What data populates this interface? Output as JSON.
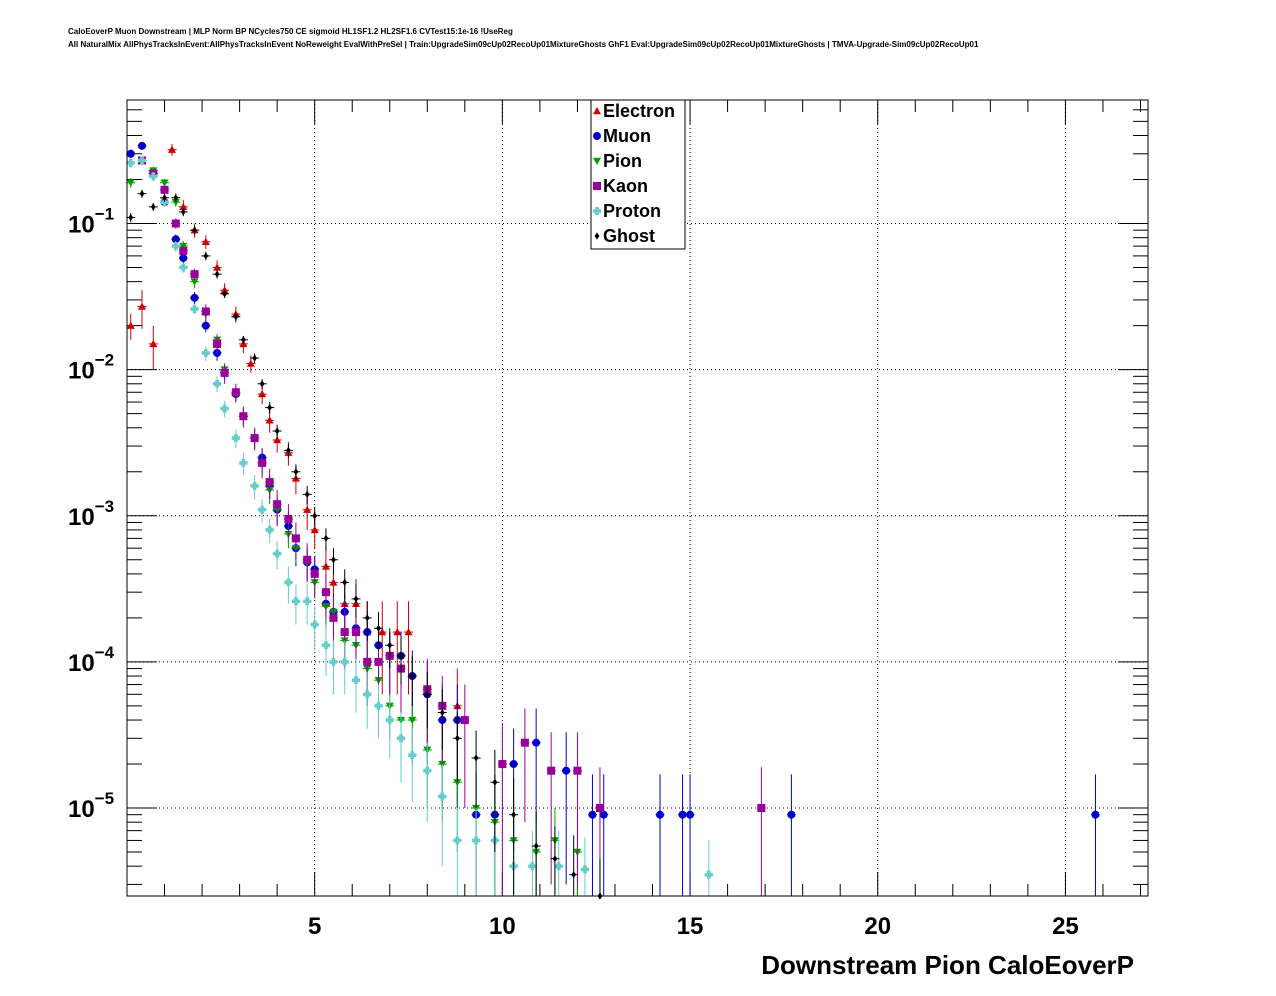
{
  "header": {
    "line1": "CaloEoverP Muon Downstream | MLP Norm BP NCycles750 CE sigmoid HL1SF1.2 HL2SF1.6 CVTest15:1e-16 !UseReg",
    "line2": "All NaturalMix AllPhysTracksInEvent:AllPhysTracksInEvent NoReweight EvalWithPreSel | Train:UpgradeSim09cUp02RecoUp01MixtureGhosts GhF1 Eval:UpgradeSim09cUp02RecoUp01MixtureGhosts | TMVA-Upgrade-Sim09cUp02RecoUp01"
  },
  "chart_data": {
    "type": "scatter",
    "xlabel": "Downstream Pion CaloEoverP",
    "ylabel": "",
    "xlim": [
      0,
      27.2
    ],
    "ylim": [
      2.5e-06,
      0.7
    ],
    "yscale": "log",
    "grid": true,
    "legend_position": "top-center",
    "x_ticks": [
      {
        "value": 5,
        "label": "5"
      },
      {
        "value": 10,
        "label": "10"
      },
      {
        "value": 15,
        "label": "15"
      },
      {
        "value": 20,
        "label": "20"
      },
      {
        "value": 25,
        "label": "25"
      }
    ],
    "y_ticks": [
      {
        "value": 0.1,
        "base": "10",
        "exp": "−1"
      },
      {
        "value": 0.01,
        "base": "10",
        "exp": "−2"
      },
      {
        "value": 0.001,
        "base": "10",
        "exp": "−3"
      },
      {
        "value": 0.0001,
        "base": "10",
        "exp": "−4"
      },
      {
        "value": 1e-05,
        "base": "10",
        "exp": "−5"
      }
    ],
    "series": [
      {
        "name": "Electron",
        "color": "#cc0000",
        "marker": "triangle-up",
        "points": [
          [
            0.1,
            0.02
          ],
          [
            0.4,
            0.027
          ],
          [
            0.7,
            0.015
          ],
          [
            1.2,
            0.32
          ],
          [
            1.5,
            0.13
          ],
          [
            1.8,
            0.09
          ],
          [
            2.1,
            0.075
          ],
          [
            2.4,
            0.05
          ],
          [
            2.6,
            0.035
          ],
          [
            2.9,
            0.024
          ],
          [
            3.1,
            0.015
          ],
          [
            3.3,
            0.011
          ],
          [
            3.6,
            0.0068
          ],
          [
            3.8,
            0.0045
          ],
          [
            4.0,
            0.0033
          ],
          [
            4.3,
            0.0027
          ],
          [
            4.5,
            0.0018
          ],
          [
            4.8,
            0.0011
          ],
          [
            5.0,
            0.0008
          ],
          [
            5.3,
            0.00045
          ],
          [
            5.5,
            0.00035
          ],
          [
            5.8,
            0.00025
          ],
          [
            6.1,
            0.00025
          ],
          [
            6.4,
            0.00016
          ],
          [
            6.8,
            0.00016
          ],
          [
            7.2,
            0.00016
          ],
          [
            7.5,
            0.00016
          ],
          [
            8.8,
            5e-05
          ]
        ],
        "errors": [
          0.004,
          0.008,
          0.005,
          0.03,
          0.015,
          0.01,
          0.008,
          0.006,
          0.004,
          0.003,
          0.002,
          0.0015,
          0.001,
          0.0008,
          0.0006,
          0.0005,
          0.0004,
          0.0003,
          0.0002,
          0.00015,
          0.00015,
          0.00012,
          0.00012,
          0.0001,
          0.0001,
          0.0001,
          0.0001,
          4e-05
        ]
      },
      {
        "name": "Muon",
        "color": "#0000cc",
        "marker": "circle",
        "points": [
          [
            0.1,
            0.3
          ],
          [
            0.4,
            0.34
          ],
          [
            0.7,
            0.22
          ],
          [
            1.0,
            0.14
          ],
          [
            1.3,
            0.078
          ],
          [
            1.5,
            0.058
          ],
          [
            1.8,
            0.031
          ],
          [
            2.1,
            0.02
          ],
          [
            2.4,
            0.013
          ],
          [
            2.6,
            0.0095
          ],
          [
            2.9,
            0.0068
          ],
          [
            3.1,
            0.0048
          ],
          [
            3.4,
            0.0034
          ],
          [
            3.6,
            0.0025
          ],
          [
            3.8,
            0.0016
          ],
          [
            4.0,
            0.0011
          ],
          [
            4.3,
            0.00085
          ],
          [
            4.5,
            0.0006
          ],
          [
            4.8,
            0.00048
          ],
          [
            5.0,
            0.00043
          ],
          [
            5.3,
            0.00025
          ],
          [
            5.5,
            0.00022
          ],
          [
            5.8,
            0.00022
          ],
          [
            6.1,
            0.00017
          ],
          [
            6.4,
            0.00016
          ],
          [
            6.7,
            0.00013
          ],
          [
            7.0,
            0.00011
          ],
          [
            7.3,
            0.00011
          ],
          [
            7.6,
            8e-05
          ],
          [
            8.0,
            6e-05
          ],
          [
            8.4,
            4e-05
          ],
          [
            8.8,
            4e-05
          ],
          [
            9.3,
            9e-06
          ],
          [
            9.8,
            9e-06
          ],
          [
            10.3,
            2e-05
          ],
          [
            10.9,
            2.8e-05
          ],
          [
            11.7,
            1.8e-05
          ],
          [
            12.4,
            9e-06
          ],
          [
            12.7,
            9e-06
          ],
          [
            14.2,
            9e-06
          ],
          [
            14.8,
            9e-06
          ],
          [
            15.0,
            9e-06
          ],
          [
            17.7,
            9e-06
          ],
          [
            25.8,
            9e-06
          ]
        ],
        "errors": [
          0.02,
          0.02,
          0.015,
          0.01,
          0.006,
          0.005,
          0.003,
          0.002,
          0.0015,
          0.001,
          0.0008,
          0.0006,
          0.0005,
          0.0004,
          0.0003,
          0.00025,
          0.0002,
          0.00015,
          0.00012,
          0.0001,
          8e-05,
          7e-05,
          7e-05,
          6e-05,
          6e-05,
          5e-05,
          5e-05,
          5e-05,
          4e-05,
          4e-05,
          3e-05,
          3e-05,
          8e-06,
          8e-06,
          1.5e-05,
          2e-05,
          1.5e-05,
          8e-06,
          8e-06,
          8e-06,
          8e-06,
          8e-06,
          8e-06,
          8e-06
        ]
      },
      {
        "name": "Pion",
        "color": "#00a000",
        "marker": "triangle-down",
        "points": [
          [
            0.1,
            0.19
          ],
          [
            0.4,
            0.27
          ],
          [
            0.7,
            0.23
          ],
          [
            1.0,
            0.19
          ],
          [
            1.3,
            0.14
          ],
          [
            1.5,
            0.07
          ],
          [
            1.8,
            0.04
          ],
          [
            2.1,
            0.024
          ],
          [
            2.4,
            0.016
          ],
          [
            2.6,
            0.01
          ],
          [
            2.9,
            0.0068
          ],
          [
            3.1,
            0.0048
          ],
          [
            3.4,
            0.0034
          ],
          [
            3.6,
            0.0023
          ],
          [
            3.8,
            0.0015
          ],
          [
            4.0,
            0.0011
          ],
          [
            4.3,
            0.00075
          ],
          [
            4.5,
            0.0006
          ],
          [
            4.8,
            0.00048
          ],
          [
            5.0,
            0.00035
          ],
          [
            5.3,
            0.00024
          ],
          [
            5.5,
            0.00022
          ],
          [
            5.8,
            0.00014
          ],
          [
            6.1,
            0.00013
          ],
          [
            6.4,
            9e-05
          ],
          [
            6.7,
            7.5e-05
          ],
          [
            7.0,
            5e-05
          ],
          [
            7.3,
            4e-05
          ],
          [
            7.6,
            4e-05
          ],
          [
            8.0,
            2.5e-05
          ],
          [
            8.4,
            2e-05
          ],
          [
            8.8,
            1.5e-05
          ],
          [
            9.3,
            1e-05
          ],
          [
            9.8,
            8e-06
          ],
          [
            10.3,
            6e-06
          ],
          [
            10.9,
            5e-06
          ],
          [
            11.4,
            6e-06
          ],
          [
            12.0,
            5e-06
          ]
        ],
        "errors": [
          0.015,
          0.02,
          0.015,
          0.012,
          0.01,
          0.006,
          0.004,
          0.002,
          0.0015,
          0.001,
          0.0008,
          0.0006,
          0.0005,
          0.0004,
          0.0003,
          0.0002,
          0.00015,
          0.00012,
          0.0001,
          8e-05,
          7e-05,
          6e-05,
          5e-05,
          5e-05,
          4e-05,
          3e-05,
          2e-05,
          2e-05,
          2e-05,
          1.5e-05,
          1.2e-05,
          1e-05,
          8e-06,
          6e-06,
          4e-06,
          4e-06,
          4e-06,
          4e-06
        ]
      },
      {
        "name": "Kaon",
        "color": "#990099",
        "marker": "square",
        "points": [
          [
            0.4,
            0.27
          ],
          [
            0.7,
            0.22
          ],
          [
            1.0,
            0.17
          ],
          [
            1.3,
            0.1
          ],
          [
            1.5,
            0.065
          ],
          [
            1.8,
            0.045
          ],
          [
            2.1,
            0.025
          ],
          [
            2.4,
            0.015
          ],
          [
            2.6,
            0.0095
          ],
          [
            2.9,
            0.007
          ],
          [
            3.1,
            0.0048
          ],
          [
            3.4,
            0.0034
          ],
          [
            3.6,
            0.0023
          ],
          [
            3.8,
            0.0017
          ],
          [
            4.0,
            0.0012
          ],
          [
            4.3,
            0.00095
          ],
          [
            4.5,
            0.0007
          ],
          [
            4.8,
            0.0005
          ],
          [
            5.0,
            0.0004
          ],
          [
            5.3,
            0.0003
          ],
          [
            5.5,
            0.0002
          ],
          [
            5.8,
            0.00016
          ],
          [
            6.1,
            0.00016
          ],
          [
            6.4,
            0.0001
          ],
          [
            6.7,
            0.0001
          ],
          [
            7.0,
            0.00011
          ],
          [
            7.3,
            9e-05
          ],
          [
            8.0,
            6.5e-05
          ],
          [
            8.4,
            5e-05
          ],
          [
            9.0,
            4e-05
          ],
          [
            10.0,
            2e-05
          ],
          [
            10.6,
            2.8e-05
          ],
          [
            11.3,
            1.8e-05
          ],
          [
            12.0,
            1.8e-05
          ],
          [
            12.6,
            1e-05
          ],
          [
            16.9,
            1e-05
          ]
        ],
        "errors": [
          0.02,
          0.015,
          0.012,
          0.008,
          0.006,
          0.004,
          0.003,
          0.002,
          0.0015,
          0.001,
          0.0008,
          0.0006,
          0.0005,
          0.0004,
          0.0003,
          0.00025,
          0.0002,
          0.00015,
          0.00012,
          0.0001,
          8e-05,
          7e-05,
          7e-05,
          5e-05,
          5e-05,
          5e-05,
          5e-05,
          4e-05,
          3e-05,
          3e-05,
          1.8e-05,
          2e-05,
          1.5e-05,
          1.5e-05,
          9e-06,
          9e-06
        ]
      },
      {
        "name": "Proton",
        "color": "#66cccc",
        "marker": "cross",
        "points": [
          [
            0.1,
            0.26
          ],
          [
            0.4,
            0.27
          ],
          [
            0.7,
            0.21
          ],
          [
            1.0,
            0.14
          ],
          [
            1.3,
            0.07
          ],
          [
            1.5,
            0.05
          ],
          [
            1.8,
            0.026
          ],
          [
            2.1,
            0.013
          ],
          [
            2.4,
            0.008
          ],
          [
            2.6,
            0.0054
          ],
          [
            2.9,
            0.0034
          ],
          [
            3.1,
            0.0023
          ],
          [
            3.4,
            0.0016
          ],
          [
            3.6,
            0.0011
          ],
          [
            3.8,
            0.0008
          ],
          [
            4.0,
            0.00055
          ],
          [
            4.3,
            0.00035
          ],
          [
            4.5,
            0.00026
          ],
          [
            4.8,
            0.00026
          ],
          [
            5.0,
            0.00018
          ],
          [
            5.3,
            0.00013
          ],
          [
            5.5,
            0.0001
          ],
          [
            5.8,
            0.0001
          ],
          [
            6.1,
            7.5e-05
          ],
          [
            6.4,
            6e-05
          ],
          [
            6.7,
            5e-05
          ],
          [
            7.0,
            4e-05
          ],
          [
            7.3,
            3e-05
          ],
          [
            7.6,
            2.3e-05
          ],
          [
            8.0,
            1.8e-05
          ],
          [
            8.4,
            1.2e-05
          ],
          [
            8.8,
            6e-06
          ],
          [
            9.3,
            6e-06
          ],
          [
            9.8,
            6e-06
          ],
          [
            10.3,
            4e-06
          ],
          [
            10.8,
            4e-06
          ],
          [
            11.5,
            4e-06
          ],
          [
            12.2,
            3.8e-06
          ],
          [
            15.5,
            3.5e-06
          ]
        ],
        "errors": [
          0.02,
          0.02,
          0.015,
          0.01,
          0.006,
          0.004,
          0.002,
          0.0015,
          0.001,
          0.0007,
          0.0005,
          0.0004,
          0.0003,
          0.0002,
          0.00015,
          0.00012,
          0.0001,
          8e-05,
          8e-05,
          6e-05,
          5e-05,
          4e-05,
          4e-05,
          3e-05,
          2.5e-05,
          2e-05,
          1.8e-05,
          1.5e-05,
          1.2e-05,
          1e-05,
          8e-06,
          4e-06,
          4e-06,
          4e-06,
          3e-06,
          3e-06,
          3e-06,
          2.5e-06,
          2.5e-06
        ]
      },
      {
        "name": "Ghost",
        "color": "#000000",
        "marker": "diamond",
        "points": [
          [
            0.1,
            0.11
          ],
          [
            0.4,
            0.16
          ],
          [
            0.7,
            0.13
          ],
          [
            1.0,
            0.15
          ],
          [
            1.3,
            0.15
          ],
          [
            1.5,
            0.12
          ],
          [
            1.8,
            0.09
          ],
          [
            2.1,
            0.06
          ],
          [
            2.4,
            0.045
          ],
          [
            2.6,
            0.033
          ],
          [
            2.9,
            0.023
          ],
          [
            3.1,
            0.016
          ],
          [
            3.4,
            0.012
          ],
          [
            3.6,
            0.008
          ],
          [
            3.8,
            0.0055
          ],
          [
            4.0,
            0.0038
          ],
          [
            4.3,
            0.0028
          ],
          [
            4.5,
            0.002
          ],
          [
            4.8,
            0.0014
          ],
          [
            5.0,
            0.001
          ],
          [
            5.3,
            0.0007
          ],
          [
            5.5,
            0.0005
          ],
          [
            5.8,
            0.00035
          ],
          [
            6.1,
            0.00027
          ],
          [
            6.4,
            0.0002
          ],
          [
            6.7,
            0.00017
          ],
          [
            7.0,
            0.00013
          ],
          [
            7.3,
            0.00011
          ],
          [
            7.6,
            8e-05
          ],
          [
            8.0,
            6e-05
          ],
          [
            8.4,
            4.5e-05
          ],
          [
            8.8,
            3e-05
          ],
          [
            9.3,
            2.2e-05
          ],
          [
            9.8,
            1.5e-05
          ],
          [
            10.3,
            9e-06
          ],
          [
            10.9,
            5.5e-06
          ],
          [
            11.4,
            4.5e-06
          ],
          [
            11.9,
            3.5e-06
          ],
          [
            12.6,
            2.5e-06
          ]
        ],
        "errors": [
          0.008,
          0.01,
          0.008,
          0.01,
          0.01,
          0.008,
          0.006,
          0.004,
          0.003,
          0.002,
          0.0015,
          0.001,
          0.0009,
          0.0006,
          0.0005,
          0.0004,
          0.0003,
          0.00025,
          0.0002,
          0.00015,
          0.00012,
          0.0001,
          8e-05,
          7e-05,
          6e-05,
          5e-05,
          4e-05,
          4e-05,
          3e-05,
          2.5e-05,
          2e-05,
          1.5e-05,
          1.2e-05,
          1e-05,
          7e-06,
          4e-06,
          3e-06,
          3e-06,
          2e-06
        ]
      }
    ]
  }
}
